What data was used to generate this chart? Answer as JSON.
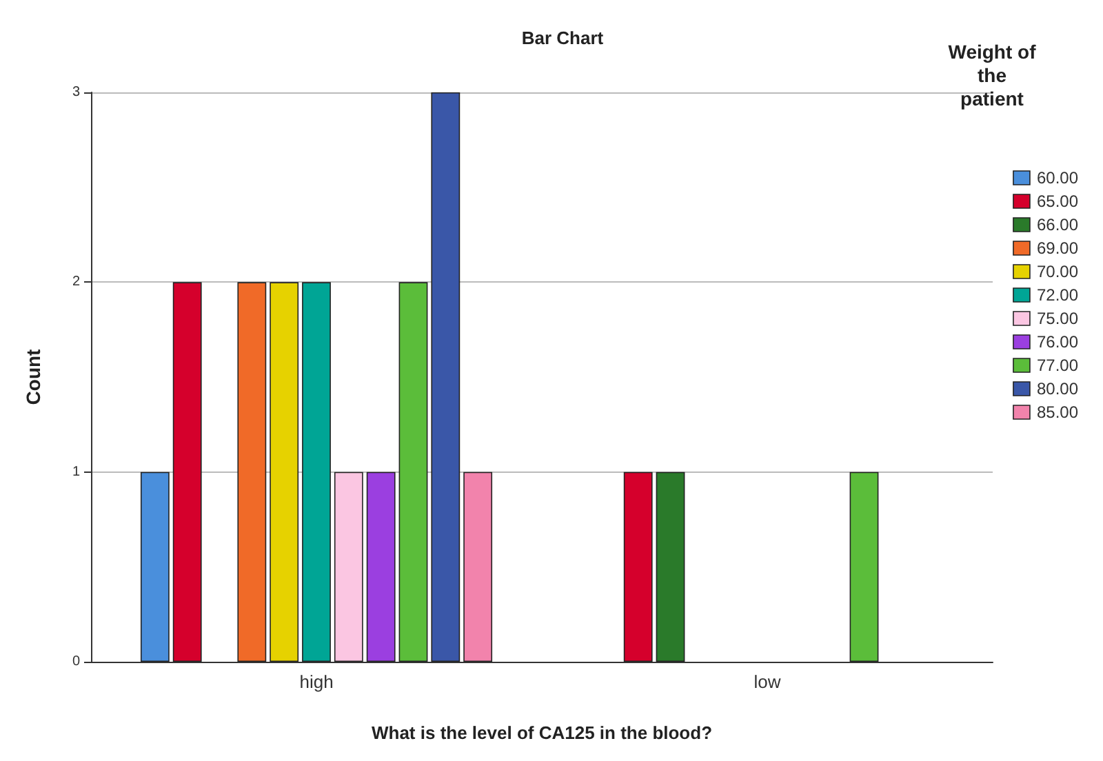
{
  "chart_data": {
    "type": "bar",
    "title": "Bar Chart",
    "xlabel": "What is the level of CA125 in the blood?",
    "ylabel": "Count",
    "legend_title": "Weight of the patient",
    "categories": [
      "high",
      "low"
    ],
    "series": [
      {
        "name": "60.00",
        "color": "#4a8fdc",
        "values": [
          1,
          null
        ]
      },
      {
        "name": "65.00",
        "color": "#d5002c",
        "values": [
          2,
          1
        ]
      },
      {
        "name": "66.00",
        "color": "#2a7a2a",
        "values": [
          null,
          1
        ]
      },
      {
        "name": "69.00",
        "color": "#f06a28",
        "values": [
          2,
          null
        ]
      },
      {
        "name": "70.00",
        "color": "#e6d200",
        "values": [
          2,
          null
        ]
      },
      {
        "name": "72.00",
        "color": "#00a595",
        "values": [
          2,
          null
        ]
      },
      {
        "name": "75.00",
        "color": "#fbc6e2",
        "values": [
          1,
          null
        ]
      },
      {
        "name": "76.00",
        "color": "#9b3fe0",
        "values": [
          1,
          null
        ]
      },
      {
        "name": "77.00",
        "color": "#5bbd3a",
        "values": [
          2,
          1
        ]
      },
      {
        "name": "80.00",
        "color": "#3a57a8",
        "values": [
          3,
          null
        ]
      },
      {
        "name": "85.00",
        "color": "#f283ac",
        "values": [
          1,
          null
        ]
      }
    ],
    "ylim": [
      0,
      3
    ],
    "yticks": [
      0,
      1,
      2,
      3
    ],
    "grid": "y",
    "legend": "right"
  }
}
